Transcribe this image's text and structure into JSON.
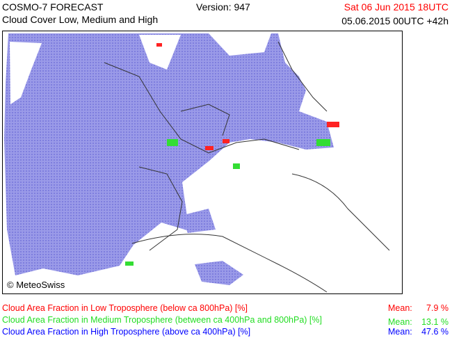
{
  "header": {
    "title": "COSMO-7 FORECAST",
    "subtitle": "Cloud Cover Low, Medium and High",
    "version": "Version: 947",
    "valid_time": "Sat 06 Jun 2015 18UTC",
    "run_time": "05.06.2015 00UTC +42h"
  },
  "map": {
    "credit": "© MeteoSwiss"
  },
  "legend": [
    {
      "label": "Cloud Area Fraction in Low Troposphere (below ca 800hPa) [%]",
      "mean_label": "Mean:",
      "mean": "7.9 %",
      "color": "#ff0000"
    },
    {
      "label": "Cloud Area Fraction in Medium Troposphere (between ca 400hPa and 800hPa) [%]",
      "mean_label": "Mean:",
      "mean": "13.1 %",
      "color": "#22dd22"
    },
    {
      "label": "Cloud Area Fraction in High Troposphere (above ca 400hPa) [%]",
      "mean_label": "Mean:",
      "mean": "47.6 %",
      "color": "#0000ff"
    }
  ]
}
